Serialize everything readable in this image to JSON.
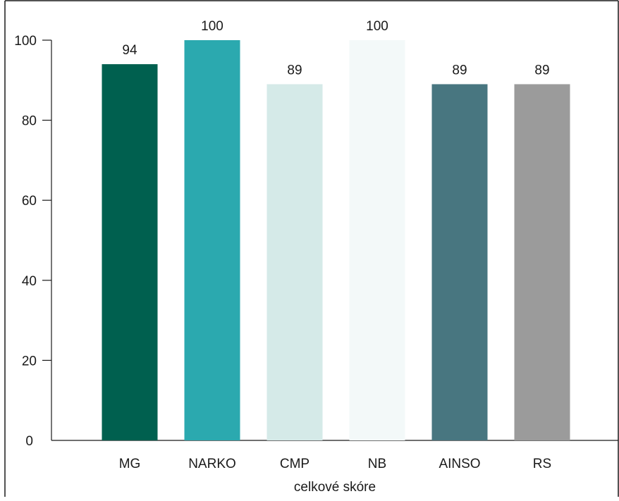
{
  "chart_data": {
    "type": "bar",
    "categories": [
      "MG",
      "NARKO",
      "CMP",
      "NB",
      "AINSO",
      "RS"
    ],
    "values": [
      94,
      100,
      89,
      100,
      89,
      89
    ],
    "data_labels": [
      "94",
      "100",
      "89",
      "100",
      "89",
      "89"
    ],
    "colors": [
      "#00604f",
      "#2ba9af",
      "#d5eae8",
      "#f3f9f9",
      "#487680",
      "#9b9b9b"
    ],
    "xlabel": "celkové skóre",
    "ylabel": "",
    "title": "",
    "ylim": [
      0,
      100
    ],
    "yticks": [
      0,
      20,
      40,
      60,
      80,
      100
    ],
    "ytick_labels": [
      "0",
      "20",
      "40",
      "60",
      "80",
      "100"
    ],
    "grid": false,
    "legend": "none"
  }
}
